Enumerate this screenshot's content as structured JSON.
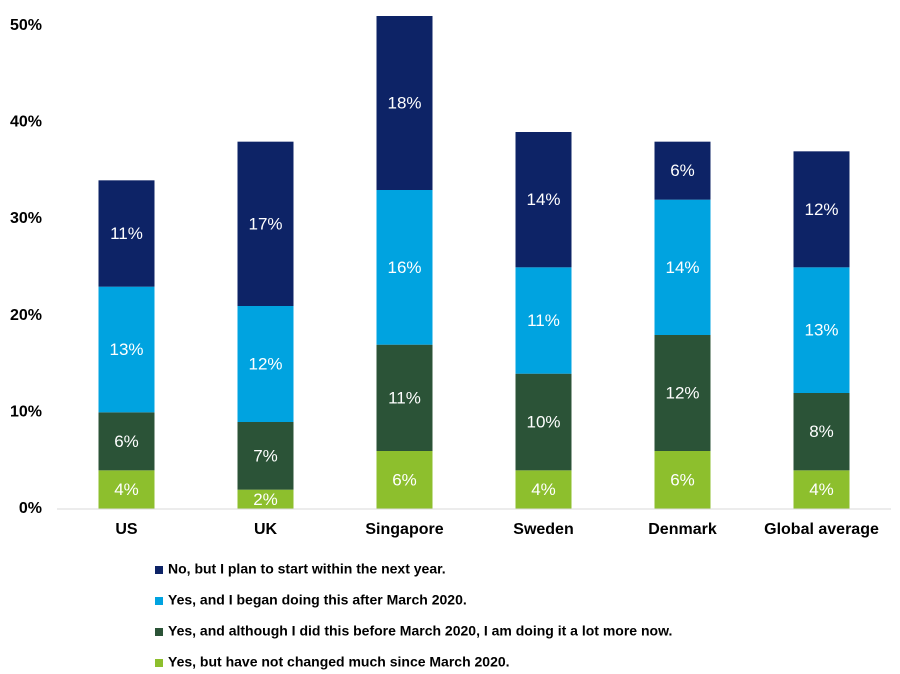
{
  "chart_data": {
    "type": "stacked-bar",
    "categories": [
      "US",
      "UK",
      "Singapore",
      "Sweden",
      "Denmark",
      "Global average"
    ],
    "series": [
      {
        "name": "No, but I plan to start within the next year.",
        "color": "#0d2366",
        "values": [
          11,
          17,
          18,
          14,
          6,
          12
        ],
        "value_labels": [
          "11%",
          "17%",
          "18%",
          "14%",
          "6%",
          "12%"
        ]
      },
      {
        "name": "Yes, and I began doing this after March 2020.",
        "color": "#00a3e0",
        "values": [
          13,
          12,
          16,
          11,
          14,
          13
        ],
        "value_labels": [
          "13%",
          "12%",
          "16%",
          "11%",
          "14%",
          "13%"
        ]
      },
      {
        "name": "Yes, and although I did this before March 2020, I am doing it a lot more now.",
        "color": "#2b5337",
        "values": [
          6,
          7,
          11,
          10,
          12,
          8
        ],
        "value_labels": [
          "6%",
          "7%",
          "11%",
          "10%",
          "12%",
          "8%"
        ]
      },
      {
        "name": "Yes, but have not changed much since March 2020.",
        "color": "#8dbf2d",
        "values": [
          4,
          2,
          6,
          4,
          6,
          4
        ],
        "value_labels": [
          "4%",
          "2%",
          "6%",
          "4%",
          "6%",
          "4%"
        ]
      }
    ],
    "ylim": [
      0,
      51
    ],
    "yticks": [
      {
        "value": 0,
        "label": "0%"
      },
      {
        "value": 10,
        "label": "10%"
      },
      {
        "value": 20,
        "label": "20%"
      },
      {
        "value": 30,
        "label": "30%"
      },
      {
        "value": 40,
        "label": "40%"
      },
      {
        "value": 50,
        "label": "50%"
      }
    ],
    "grid": false
  }
}
